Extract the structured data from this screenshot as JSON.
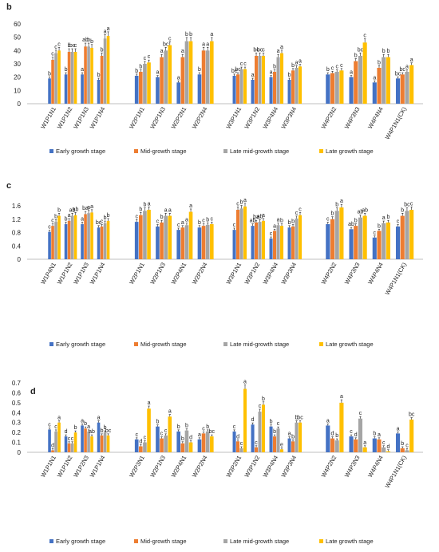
{
  "colors": {
    "series": [
      "#4472C4",
      "#ED7D31",
      "#A5A5A5",
      "#FFC000"
    ],
    "axis": "#bfbfbf",
    "error_bar": "#222222",
    "text": "#222222"
  },
  "legend": [
    "Early growth stage",
    "Mid-growth stage",
    "Late mid-growth stage",
    "Late growth stage"
  ],
  "chart_data": [
    {
      "type": "bar",
      "panel_label": "b",
      "ylim": [
        0,
        60
      ],
      "yticks": [
        "0",
        "10",
        "20",
        "30",
        "40",
        "50",
        "60"
      ],
      "groups": [
        4,
        4,
        4,
        4
      ],
      "categories": [
        "W1P1N1",
        "W1P1N2",
        "W1P1N3",
        "W1P1N4",
        "W2P1N1",
        "W2P1N3",
        "W2P2N1",
        "W2P2N4",
        "W3P1N1",
        "W3P1N2",
        "W3P4N4",
        "W3P3N4",
        "W4P2N2",
        "W4P3N3",
        "W4P4N4",
        "W4P1N1(CK)"
      ],
      "series": [
        {
          "name": "Early growth stage",
          "values": [
            19,
            22,
            22,
            18,
            21,
            20,
            16,
            22,
            21,
            18,
            20,
            18,
            22,
            20,
            16,
            19
          ],
          "letters": [
            "b",
            "b",
            "a",
            "b",
            "b",
            "a",
            "a",
            "b",
            "bc",
            "a",
            "a",
            "b",
            "b",
            "a",
            "a",
            "bc"
          ]
        },
        {
          "name": "Mid-growth stage",
          "values": [
            33,
            39,
            43,
            36,
            24,
            35,
            35,
            40,
            22,
            36,
            24,
            25,
            23,
            32,
            27,
            22
          ],
          "letters": [
            "c",
            "b",
            "ab",
            "b",
            "b",
            "a",
            "a",
            "a",
            "bc",
            "bc",
            "b",
            "b",
            "c",
            "b",
            "b",
            "bc"
          ]
        },
        {
          "name": "Late mid-growth stage",
          "values": [
            38,
            39,
            43,
            49,
            30,
            40,
            47,
            40,
            26,
            36,
            35,
            27,
            24,
            36,
            35,
            24
          ],
          "letters": [
            "c",
            "bc",
            "b",
            "a",
            "c",
            "bc",
            "b",
            "a",
            "c",
            "bc",
            "a",
            "a",
            "c",
            "bc",
            "b",
            "a"
          ]
        },
        {
          "name": "Late growth stage",
          "values": [
            40,
            39,
            42,
            51,
            31,
            44,
            47,
            47,
            26,
            36,
            38,
            28,
            25,
            46,
            35,
            29
          ],
          "letters": [
            "c",
            "c",
            "b",
            "a",
            "c",
            "c",
            "b",
            "a",
            "c",
            "c",
            "a",
            "a",
            "c",
            "c",
            "b",
            "a"
          ]
        }
      ]
    },
    {
      "type": "bar",
      "panel_label": "c",
      "ylim": [
        0,
        1.6
      ],
      "yticks": [
        "0",
        "0.4",
        "0.8",
        "1.2",
        "1.6"
      ],
      "groups": [
        4,
        4,
        4,
        4
      ],
      "categories": [
        "W1P4N1",
        "W1P1N2",
        "W1P1N3",
        "W1P1N4",
        "W2P1N1",
        "W2P1N3",
        "W2P4N1",
        "W2P2N4",
        "W3P1N1",
        "W3P1N2",
        "W3P4N4",
        "W3P3N4",
        "W4P2N2",
        "W4P3N3",
        "W4P4N4",
        "W4P1N1(CK)"
      ],
      "series": [
        {
          "name": "Early growth stage",
          "values": [
            0.82,
            1.05,
            1.05,
            0.95,
            1.12,
            0.98,
            0.88,
            0.95,
            0.88,
            1.0,
            0.62,
            0.95,
            1.05,
            0.9,
            0.65,
            0.98
          ],
          "letters": [
            "c",
            "b",
            "a",
            "bc",
            "c",
            "c",
            "c",
            "b",
            "c",
            "ab",
            "c",
            "b",
            "c",
            "ab",
            "c",
            "c"
          ]
        },
        {
          "name": "Mid-growth stage",
          "values": [
            1.0,
            1.15,
            1.35,
            0.98,
            1.32,
            1.1,
            0.95,
            1.0,
            1.48,
            1.1,
            0.85,
            0.98,
            1.2,
            1.0,
            0.85,
            1.3
          ],
          "letters": [
            "c",
            "a",
            "ba",
            "c",
            "b",
            "b",
            "a",
            "c",
            "c",
            "ba",
            "a",
            "b",
            "b",
            "b",
            "b",
            "b"
          ]
        },
        {
          "name": "Late mid-growth stage",
          "values": [
            1.12,
            1.3,
            1.38,
            1.08,
            1.45,
            1.3,
            1.02,
            1.03,
            1.52,
            1.12,
            1.02,
            1.22,
            1.45,
            1.25,
            1.08,
            1.45
          ],
          "letters": [
            "b",
            "ab",
            "a",
            "b",
            "b",
            "a",
            "a",
            "b",
            "b",
            "ab",
            "a",
            "c",
            "b",
            "ab",
            "a",
            "bc"
          ]
        },
        {
          "name": "Late growth stage",
          "values": [
            1.3,
            1.32,
            1.4,
            1.15,
            1.48,
            1.3,
            1.42,
            1.05,
            1.58,
            1.15,
            1.0,
            1.32,
            1.55,
            1.3,
            1.1,
            1.48
          ],
          "letters": [
            "b",
            "ab",
            "a",
            "b",
            "a",
            "a",
            "a",
            "c",
            "a",
            "a",
            "b",
            "c",
            "a",
            "ab",
            "b",
            "c"
          ]
        }
      ]
    },
    {
      "type": "bar",
      "panel_label": "d",
      "ylim": [
        0,
        0.7
      ],
      "yticks": [
        "0",
        "0.1",
        "0.2",
        "0.3",
        "0.4",
        "0.5",
        "0.6",
        "0.7"
      ],
      "groups": [
        4,
        4,
        4,
        4
      ],
      "categories": [
        "W1P1N1",
        "W1P1N2",
        "W1P2N3",
        "W1P1N4",
        "W2P3N1",
        "W2P1N3",
        "W2P4N1",
        "W2P2N4",
        "W3P2N1",
        "W3P1N2",
        "W3P4N4",
        "W3P3N4",
        "W4P2N2",
        "W4P3N3",
        "W4P4N4",
        "W4P1N1(CK)"
      ],
      "series": [
        {
          "name": "Early growth stage",
          "values": [
            0.23,
            0.16,
            0.27,
            0.3,
            0.13,
            0.26,
            0.21,
            0.13,
            0.21,
            0.28,
            0.26,
            0.14,
            0.27,
            0.16,
            0.14,
            0.19
          ],
          "letters": [
            "c",
            "d",
            "a",
            "a",
            "c",
            "b",
            "b",
            "a",
            "c",
            "d",
            "b",
            "a",
            "a",
            "c",
            "b",
            "a"
          ]
        },
        {
          "name": "Mid-growth stage",
          "values": [
            0.02,
            0.09,
            0.24,
            0.17,
            0.06,
            0.14,
            0.09,
            0.19,
            0.11,
            0.05,
            0.16,
            0.11,
            0.14,
            0.13,
            0.13,
            0.04
          ],
          "letters": [
            "d",
            "c",
            "b",
            "b",
            "d",
            "c",
            "b",
            "c",
            "d",
            "c",
            "b",
            "b",
            "d",
            "d",
            "a",
            "b"
          ]
        },
        {
          "name": "Late mid-growth stage",
          "values": [
            0.21,
            0.09,
            0.21,
            0.2,
            0.1,
            0.17,
            0.22,
            0.21,
            0.04,
            0.41,
            0.24,
            0.3,
            0.12,
            0.34,
            0.05,
            0.02
          ],
          "letters": [
            "c",
            "c",
            "a",
            "b",
            "c",
            "c",
            "b",
            "b",
            "c",
            "c",
            "c",
            "b",
            "b",
            "c",
            "c",
            "c"
          ]
        },
        {
          "name": "Late growth stage",
          "values": [
            0.3,
            0.2,
            0.16,
            0.17,
            0.44,
            0.36,
            0.1,
            0.16,
            0.64,
            0.48,
            0.03,
            0.3,
            0.5,
            0.05,
            0.01,
            0.33
          ],
          "letters": [
            "a",
            "b",
            "ab",
            "bc",
            "a",
            "a",
            "d",
            "bc",
            "a",
            "b",
            "e",
            "bc",
            "a",
            "a",
            "d",
            "bc"
          ]
        }
      ]
    }
  ]
}
